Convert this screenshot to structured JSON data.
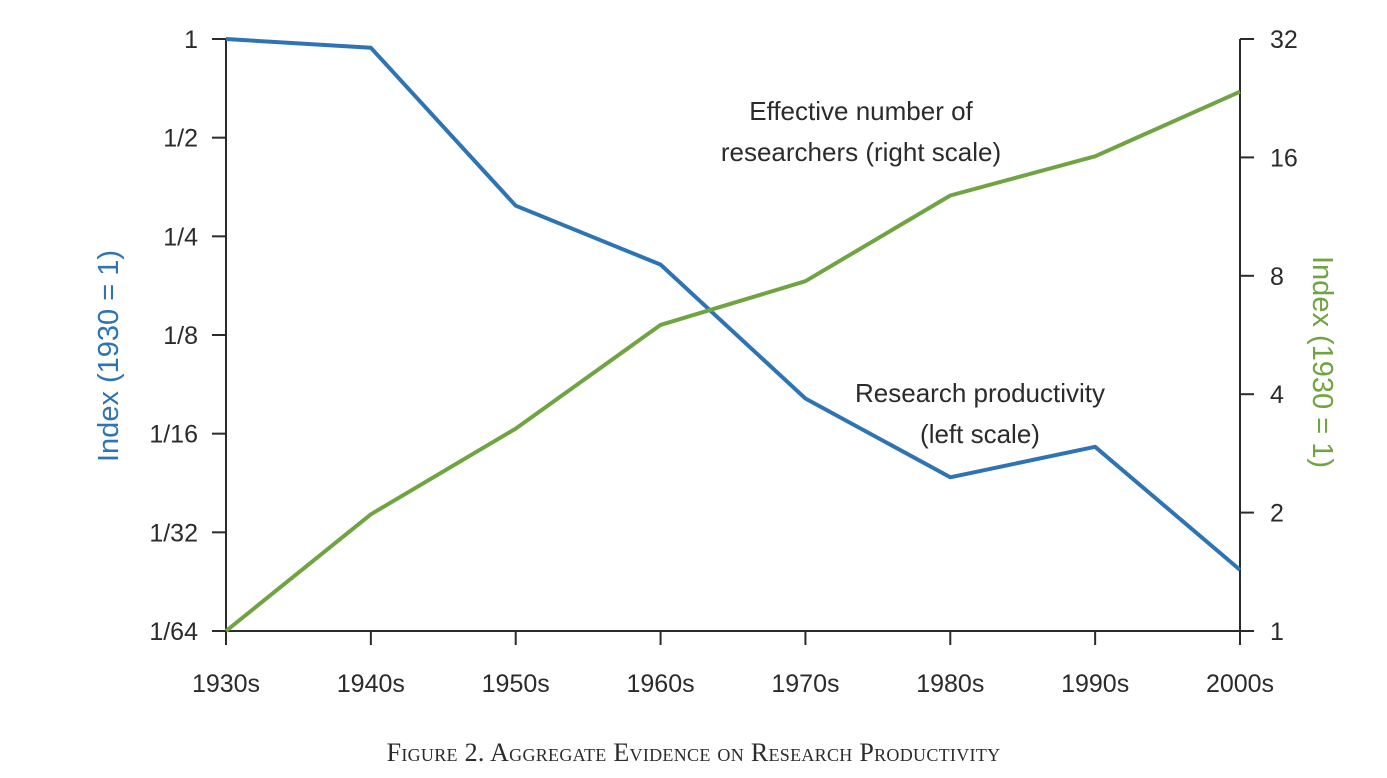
{
  "chart_data": {
    "type": "line",
    "caption": "Figure 2. Aggregate Evidence on Research Productivity",
    "categories": [
      "1930s",
      "1940s",
      "1950s",
      "1960s",
      "1970s",
      "1980s",
      "1990s",
      "2000s"
    ],
    "left_axis": {
      "label": "Index (1930 = 1)",
      "scale": "log2",
      "range": [
        0.015625,
        1
      ],
      "ticks": [
        1,
        0.5,
        0.25,
        0.125,
        0.0625,
        0.03125,
        0.015625
      ],
      "tick_labels": [
        "1",
        "1/2",
        "1/4",
        "1/8",
        "1/16",
        "1/32",
        "1/64"
      ],
      "color": "#2e74b5"
    },
    "right_axis": {
      "label": "Index (1930 = 1)",
      "scale": "log2",
      "range": [
        1,
        32
      ],
      "ticks": [
        32,
        16,
        8,
        4,
        2,
        1
      ],
      "tick_labels": [
        "32",
        "16",
        "8",
        "4",
        "2",
        "1"
      ],
      "color": "#70a442"
    },
    "series": [
      {
        "axis": "left",
        "color": "#2e74b5",
        "values": [
          1,
          0.94,
          0.31,
          0.205,
          0.08,
          0.046,
          0.057,
          0.024
        ]
      },
      {
        "axis": "right",
        "color": "#70a442",
        "values": [
          1,
          1.98,
          3.27,
          6.0,
          7.75,
          12.8,
          16.1,
          23.5
        ]
      }
    ],
    "annotations": [
      {
        "lines": [
          "Effective number of",
          "researchers (right scale)"
        ]
      },
      {
        "lines": [
          "Research productivity",
          "(left scale)"
        ]
      }
    ],
    "grid": false
  }
}
